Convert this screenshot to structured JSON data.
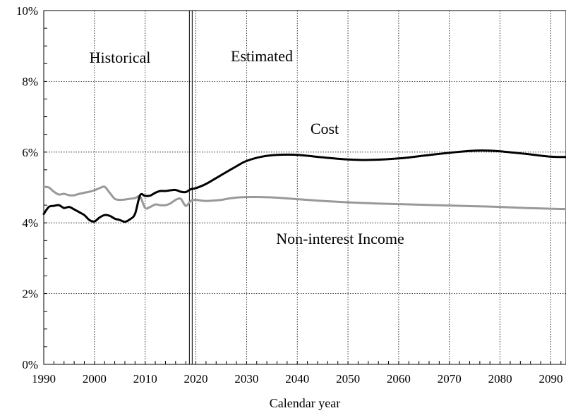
{
  "chart_data": {
    "type": "line",
    "xlabel": "Calendar year",
    "ylabel": "",
    "xlim": [
      1990,
      2093
    ],
    "ylim": [
      0,
      10
    ],
    "x_ticks": [
      1990,
      2000,
      2010,
      2020,
      2030,
      2040,
      2050,
      2060,
      2070,
      2080,
      2090
    ],
    "y_ticks": [
      0,
      2,
      4,
      6,
      8,
      10
    ],
    "y_tick_labels": [
      "0%",
      "2%",
      "4%",
      "6%",
      "8%",
      "10%"
    ],
    "grid": true,
    "divider_year": 2019,
    "annotations": {
      "historical": "Historical",
      "estimated": "Estimated",
      "cost": "Cost",
      "income": "Non-interest Income"
    },
    "series": [
      {
        "name": "Cost",
        "color": "#000000",
        "points": [
          [
            1990,
            4.25
          ],
          [
            1991,
            4.45
          ],
          [
            1992,
            4.48
          ],
          [
            1993,
            4.5
          ],
          [
            1994,
            4.42
          ],
          [
            1995,
            4.45
          ],
          [
            1996,
            4.38
          ],
          [
            1997,
            4.3
          ],
          [
            1998,
            4.22
          ],
          [
            1999,
            4.08
          ],
          [
            2000,
            4.04
          ],
          [
            2001,
            4.15
          ],
          [
            2002,
            4.22
          ],
          [
            2003,
            4.2
          ],
          [
            2004,
            4.12
          ],
          [
            2005,
            4.08
          ],
          [
            2006,
            4.03
          ],
          [
            2007,
            4.1
          ],
          [
            2008,
            4.25
          ],
          [
            2009,
            4.78
          ],
          [
            2010,
            4.76
          ],
          [
            2011,
            4.77
          ],
          [
            2012,
            4.85
          ],
          [
            2013,
            4.9
          ],
          [
            2014,
            4.9
          ],
          [
            2015,
            4.92
          ],
          [
            2016,
            4.93
          ],
          [
            2017,
            4.88
          ],
          [
            2018,
            4.87
          ],
          [
            2019,
            4.95
          ],
          [
            2020,
            4.98
          ],
          [
            2022,
            5.1
          ],
          [
            2025,
            5.35
          ],
          [
            2028,
            5.6
          ],
          [
            2030,
            5.75
          ],
          [
            2033,
            5.87
          ],
          [
            2036,
            5.92
          ],
          [
            2040,
            5.92
          ],
          [
            2045,
            5.85
          ],
          [
            2050,
            5.79
          ],
          [
            2055,
            5.78
          ],
          [
            2060,
            5.82
          ],
          [
            2065,
            5.9
          ],
          [
            2070,
            5.98
          ],
          [
            2075,
            6.04
          ],
          [
            2078,
            6.04
          ],
          [
            2080,
            6.02
          ],
          [
            2085,
            5.95
          ],
          [
            2090,
            5.87
          ],
          [
            2093,
            5.86
          ]
        ]
      },
      {
        "name": "Non-interest Income",
        "color": "#999999",
        "points": [
          [
            1990,
            5.02
          ],
          [
            1991,
            5.0
          ],
          [
            1992,
            4.88
          ],
          [
            1993,
            4.8
          ],
          [
            1994,
            4.82
          ],
          [
            1995,
            4.78
          ],
          [
            1996,
            4.78
          ],
          [
            1997,
            4.82
          ],
          [
            1998,
            4.85
          ],
          [
            1999,
            4.88
          ],
          [
            2000,
            4.92
          ],
          [
            2001,
            4.98
          ],
          [
            2002,
            5.02
          ],
          [
            2003,
            4.85
          ],
          [
            2004,
            4.68
          ],
          [
            2005,
            4.65
          ],
          [
            2006,
            4.66
          ],
          [
            2007,
            4.68
          ],
          [
            2008,
            4.7
          ],
          [
            2009,
            4.74
          ],
          [
            2010,
            4.42
          ],
          [
            2011,
            4.45
          ],
          [
            2012,
            4.52
          ],
          [
            2013,
            4.5
          ],
          [
            2014,
            4.5
          ],
          [
            2015,
            4.55
          ],
          [
            2016,
            4.65
          ],
          [
            2017,
            4.68
          ],
          [
            2018,
            4.48
          ],
          [
            2019,
            4.62
          ],
          [
            2020,
            4.65
          ],
          [
            2022,
            4.62
          ],
          [
            2025,
            4.65
          ],
          [
            2027,
            4.7
          ],
          [
            2030,
            4.73
          ],
          [
            2035,
            4.72
          ],
          [
            2040,
            4.67
          ],
          [
            2045,
            4.62
          ],
          [
            2050,
            4.58
          ],
          [
            2055,
            4.55
          ],
          [
            2060,
            4.53
          ],
          [
            2065,
            4.51
          ],
          [
            2070,
            4.49
          ],
          [
            2075,
            4.47
          ],
          [
            2080,
            4.45
          ],
          [
            2085,
            4.42
          ],
          [
            2090,
            4.4
          ],
          [
            2093,
            4.39
          ]
        ]
      }
    ]
  }
}
